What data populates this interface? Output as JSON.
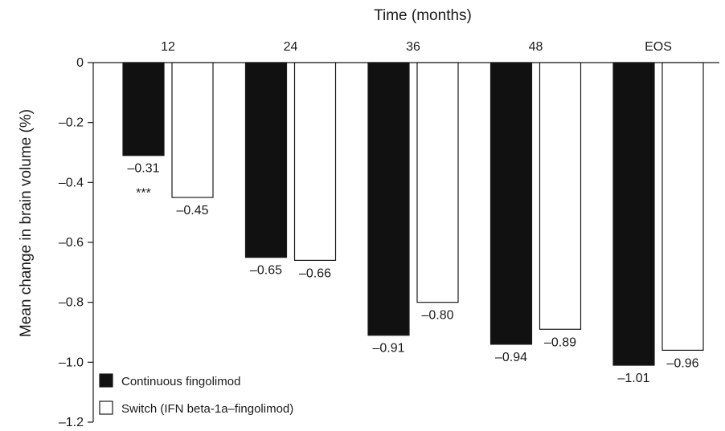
{
  "chart_data": {
    "type": "bar",
    "xlabel": "Time (months)",
    "ylabel": "Mean change in brain volume (%)",
    "categories": [
      "12",
      "24",
      "36",
      "48",
      "EOS"
    ],
    "ylim": [
      -1.2,
      0
    ],
    "yticks": [
      0,
      -0.2,
      -0.4,
      -0.6,
      -0.8,
      -1.0,
      -1.2
    ],
    "ytick_labels": [
      "0",
      "–0.2",
      "–0.4",
      "–0.6",
      "–0.8",
      "–1.0",
      "–1.2"
    ],
    "series": [
      {
        "name": "Continuous fingolimod",
        "color": "#111111",
        "values": [
          -0.31,
          -0.65,
          -0.91,
          -0.94,
          -1.01
        ],
        "labels": [
          "–0.31",
          "–0.65",
          "–0.91",
          "–0.94",
          "–1.01"
        ]
      },
      {
        "name": "Switch (IFN beta-1a–fingolimod)",
        "color": "#ffffff",
        "values": [
          -0.45,
          -0.66,
          -0.8,
          -0.89,
          -0.96
        ],
        "labels": [
          "–0.45",
          "–0.66",
          "–0.80",
          "–0.89",
          "–0.96"
        ]
      }
    ],
    "annotations": [
      {
        "text": "***",
        "category": "12",
        "series": 0
      }
    ],
    "legend": {
      "position": "bottom-left"
    },
    "grid": false
  }
}
